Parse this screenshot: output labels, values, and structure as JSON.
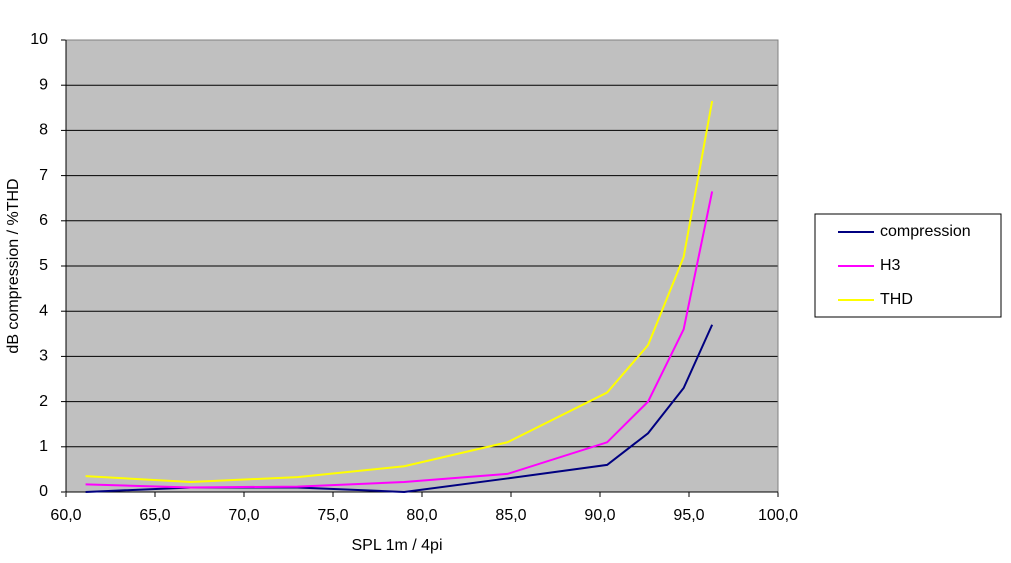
{
  "chart_data": {
    "type": "line",
    "x_label": "SPL 1m / 4pi",
    "y_label": "dB compression / %THD",
    "x": [
      61.1,
      67.0,
      73.0,
      79.0,
      84.8,
      90.4,
      92.7,
      94.7,
      96.3
    ],
    "series": [
      {
        "name": "compression",
        "color": "#000080",
        "values": [
          0,
          0.1,
          0.1,
          0,
          0.3,
          0.6,
          1.3,
          2.3,
          3.7
        ]
      },
      {
        "name": "H3",
        "color": "#ff00ff",
        "values": [
          0.17,
          0.1,
          0.12,
          0.22,
          0.4,
          1.1,
          2.0,
          3.6,
          6.65
        ]
      },
      {
        "name": "THD",
        "color": "#ffff00",
        "values": [
          0.35,
          0.22,
          0.33,
          0.57,
          1.1,
          2.2,
          3.25,
          5.2,
          8.65
        ]
      }
    ],
    "xlim": [
      60,
      100
    ],
    "xticks": [
      {
        "value": 60,
        "label": "60,0"
      },
      {
        "value": 65,
        "label": "65,0"
      },
      {
        "value": 70,
        "label": "70,0"
      },
      {
        "value": 75,
        "label": "75,0"
      },
      {
        "value": 80,
        "label": "80,0"
      },
      {
        "value": 85,
        "label": "85,0"
      },
      {
        "value": 90,
        "label": "90,0"
      },
      {
        "value": 95,
        "label": "95,0"
      },
      {
        "value": 100,
        "label": "100,0"
      }
    ],
    "ylim": [
      0,
      10
    ],
    "yticks": [
      0,
      1,
      2,
      3,
      4,
      5,
      6,
      7,
      8,
      9,
      10
    ],
    "grid": true,
    "legend": "right",
    "plot_background": "#c0c0c0"
  }
}
